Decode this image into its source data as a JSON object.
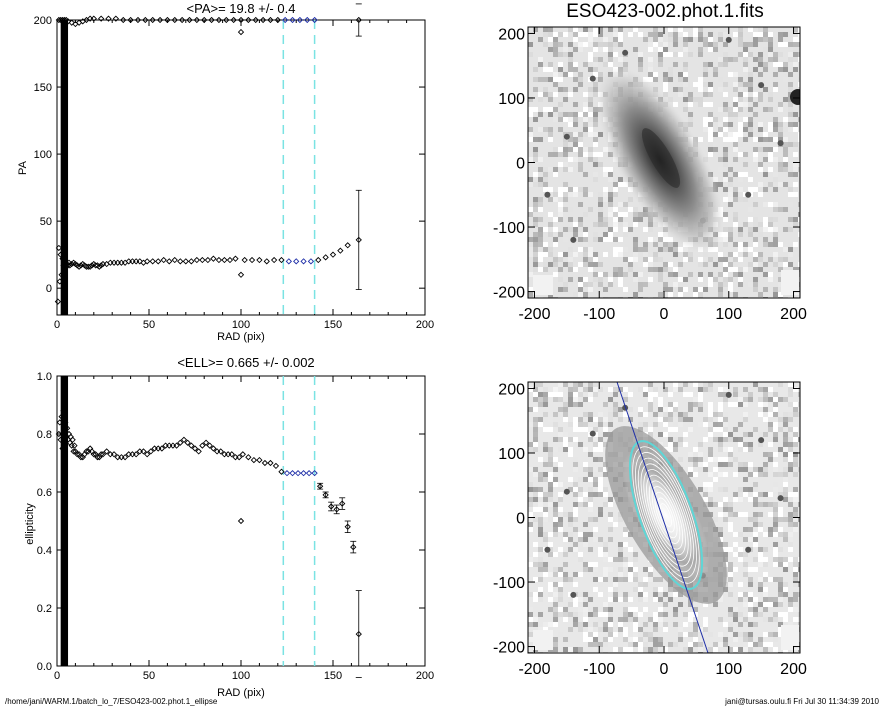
{
  "footer": {
    "path": "/home/jani/WARM.1/batch_lo_7/ESO423-002.phot.1_ellipse",
    "stamp": "jani@tursas.oulu.fi  Fri Jul 30 11:34:39 2010"
  },
  "colors": {
    "points": "#000000",
    "fit_points": "#1f2fa8",
    "fit_range": "#7ae3e3",
    "major_axis": "#1f2fa8",
    "outer_isophote": "#5fd6d6",
    "isophotes": "#ffffff"
  },
  "chart_data": [
    {
      "type": "scatter",
      "title": "<PA>=  19.8 +/-   0.4",
      "xlabel": "RAD (pix)",
      "ylabel": "PA",
      "xlim": [
        0,
        200
      ],
      "ylim": [
        -20,
        200
      ],
      "xticks": [
        0,
        50,
        100,
        150,
        200
      ],
      "yticks": [
        0,
        50,
        100,
        150,
        200
      ],
      "fit_range": [
        123,
        140
      ],
      "fit_value": 19.8,
      "series": [
        {
          "x": [
            0.5,
            1.0,
            1.5,
            2.0,
            2.5,
            3.0,
            3.5,
            4.0,
            4.5,
            5.0,
            5.5,
            6.0,
            6.5,
            7.0,
            8.0,
            9.0,
            10.0,
            11.0,
            12.0,
            13.0,
            14.0,
            15.0,
            16.0,
            17.0,
            18.0,
            19.0,
            20.0,
            21.0,
            22.0,
            23.0,
            24.0,
            25.0,
            27.0,
            29.0,
            31.0,
            33.0,
            35.0,
            37.0,
            39.0,
            41.0,
            43.0,
            45.0,
            47.0,
            49.0,
            52.0,
            55.0,
            58.0,
            61.0,
            64.0,
            67.0,
            70.0,
            73.0,
            76.0,
            79.0,
            82.0,
            85.0,
            88.0,
            91.0,
            94.0,
            97.0,
            102.0,
            106.0,
            110.0,
            114.0,
            118.0,
            122.0,
            126.0,
            130.0,
            134.0,
            138.0,
            142.0,
            146.0,
            150.0,
            154.0,
            158.0,
            164.0
          ],
          "y": [
            -10,
            30,
            5,
            25,
            10,
            22,
            17,
            14,
            20,
            16,
            18,
            17,
            19,
            17,
            18,
            19,
            18,
            17,
            16,
            17,
            18,
            17,
            16,
            16,
            16,
            17,
            18,
            17,
            17,
            16,
            17,
            18,
            18,
            19,
            19,
            19,
            19,
            19,
            20,
            20,
            20,
            20,
            19,
            20,
            20,
            20,
            21,
            20,
            21,
            20,
            20,
            20,
            21,
            21,
            21,
            22,
            21,
            21,
            21,
            22,
            21,
            21,
            21,
            20,
            21,
            21,
            20,
            20,
            20,
            20,
            21,
            23,
            25,
            28,
            32,
            36
          ],
          "err": [
            0,
            0,
            0,
            0,
            0,
            0,
            0,
            0,
            0,
            0,
            0,
            0,
            0,
            0,
            0,
            0,
            0,
            0,
            0,
            0,
            0,
            0,
            0,
            0,
            0,
            0,
            0,
            0,
            0,
            0,
            0,
            0,
            0,
            0,
            0,
            0,
            0,
            0,
            0,
            0,
            0,
            0,
            0,
            0,
            0,
            0,
            0,
            0,
            0,
            0,
            0,
            0,
            0,
            0,
            0,
            0,
            0,
            0,
            0,
            0,
            0,
            0,
            0,
            0,
            0,
            0,
            0,
            0,
            0,
            0,
            0,
            0,
            0,
            0,
            0,
            37
          ]
        },
        {
          "x": [
            1.0,
            2.0,
            3.0,
            4.0,
            5.0,
            6.0,
            8.0,
            10.0,
            12.0,
            14.0,
            16.0,
            18.0,
            20.0,
            24.0,
            28.0,
            32.0,
            36.0,
            40.0,
            44.0,
            48.0,
            52.0,
            56.0,
            60.0,
            64.0,
            68.0,
            72.0,
            76.0,
            80.0,
            84.0,
            88.0,
            92.0,
            96.0,
            100.0,
            104.0,
            108.0,
            112.0,
            116.0,
            120.0,
            124.0,
            128.0,
            132.0,
            136.0,
            140.0,
            164.0
          ],
          "y": [
            200,
            200,
            200,
            200,
            200,
            199,
            198,
            197,
            198,
            199,
            200,
            201,
            201,
            201,
            201,
            201,
            200,
            200,
            200,
            200,
            200,
            200,
            200,
            200,
            200,
            200,
            200,
            200,
            200,
            200,
            200,
            200,
            200,
            200,
            200,
            200,
            200,
            200,
            200,
            200,
            200,
            200,
            200,
            200
          ],
          "err": [
            0,
            0,
            0,
            0,
            0,
            0,
            0,
            0,
            0,
            0,
            0,
            0,
            0,
            0,
            0,
            0,
            0,
            0,
            0,
            0,
            0,
            0,
            0,
            0,
            0,
            0,
            0,
            0,
            0,
            0,
            0,
            0,
            0,
            0,
            0,
            0,
            0,
            0,
            0,
            0,
            0,
            0,
            0,
            12
          ]
        },
        {
          "x": [
            100.0,
            100.0
          ],
          "y": [
            10,
            191
          ],
          "err": [
            0,
            0
          ]
        }
      ]
    },
    {
      "type": "image",
      "title": "ESO423-002.phot.1.fits",
      "xlim": [
        -210,
        210
      ],
      "ylim": [
        -210,
        210
      ],
      "xticks": [
        -200,
        -100,
        0,
        100,
        200
      ],
      "yticks": [
        -200,
        -100,
        0,
        100,
        200
      ]
    },
    {
      "type": "scatter",
      "title": "<ELL>= 0.665 +/-  0.002",
      "xlabel": "RAD (pix)",
      "ylabel": "ellipticity",
      "xlim": [
        0,
        200
      ],
      "ylim": [
        0,
        1
      ],
      "xticks": [
        0,
        50,
        100,
        150,
        200
      ],
      "yticks": [
        0.0,
        0.2,
        0.4,
        0.6,
        0.8,
        1.0
      ],
      "fit_range": [
        123,
        140
      ],
      "fit_value": 0.665,
      "series": [
        {
          "x": [
            1.0,
            1.5,
            2.0,
            2.5,
            3.0,
            3.5,
            4.0,
            4.5,
            5.0,
            5.5,
            6.0,
            6.5,
            7.0,
            7.5,
            8.0,
            8.5,
            9.0,
            9.5,
            10.0,
            11.0,
            12.0,
            13.0,
            14.0,
            15.0,
            16.0,
            17.0,
            18.0,
            19.0,
            20.0,
            21.0,
            22.0,
            23.0,
            24.0,
            25.0,
            27.0,
            29.0,
            31.0,
            33.0,
            35.0,
            37.0,
            39.0,
            41.0,
            43.0,
            45.0,
            47.0,
            49.0,
            51.0,
            53.0,
            55.0,
            57.0,
            59.0,
            61.0,
            63.0,
            65.0,
            67.0,
            69.0,
            71.0,
            73.0,
            75.0,
            77.0,
            79.0,
            81.0,
            83.0,
            85.0,
            87.0,
            89.0,
            91.0,
            93.0,
            95.0,
            97.0,
            99.0,
            101.0,
            104.0,
            107.0,
            110.0,
            113.0,
            116.0,
            119.0,
            122.0,
            125.0,
            128.0,
            131.0,
            134.0,
            137.0,
            140.0,
            143.0,
            146.0,
            149.0,
            152.0,
            155.0,
            158.0,
            161.0,
            164.0
          ],
          "y": [
            0.8,
            0.84,
            0.78,
            0.86,
            0.75,
            0.88,
            0.77,
            0.84,
            0.79,
            0.82,
            0.78,
            0.8,
            0.77,
            0.79,
            0.76,
            0.78,
            0.74,
            0.76,
            0.74,
            0.73,
            0.73,
            0.72,
            0.72,
            0.73,
            0.74,
            0.74,
            0.75,
            0.74,
            0.73,
            0.73,
            0.72,
            0.72,
            0.73,
            0.73,
            0.74,
            0.73,
            0.73,
            0.72,
            0.72,
            0.72,
            0.73,
            0.73,
            0.73,
            0.74,
            0.74,
            0.73,
            0.74,
            0.75,
            0.75,
            0.75,
            0.76,
            0.76,
            0.76,
            0.76,
            0.77,
            0.78,
            0.77,
            0.76,
            0.75,
            0.74,
            0.76,
            0.77,
            0.76,
            0.75,
            0.74,
            0.74,
            0.73,
            0.73,
            0.73,
            0.72,
            0.72,
            0.73,
            0.72,
            0.71,
            0.71,
            0.7,
            0.7,
            0.69,
            0.67,
            0.665,
            0.665,
            0.665,
            0.665,
            0.665,
            0.665,
            0.62,
            0.59,
            0.55,
            0.54,
            0.56,
            0.48,
            0.41,
            0.11
          ],
          "err": [
            0,
            0,
            0,
            0,
            0,
            0,
            0,
            0,
            0,
            0,
            0,
            0,
            0,
            0,
            0,
            0,
            0,
            0,
            0,
            0,
            0,
            0,
            0,
            0,
            0,
            0,
            0,
            0,
            0,
            0,
            0,
            0,
            0,
            0,
            0,
            0,
            0,
            0,
            0,
            0,
            0,
            0,
            0,
            0,
            0,
            0,
            0,
            0,
            0,
            0,
            0,
            0,
            0,
            0,
            0,
            0,
            0,
            0,
            0,
            0,
            0,
            0,
            0,
            0,
            0,
            0,
            0,
            0,
            0,
            0,
            0,
            0,
            0,
            0,
            0,
            0,
            0,
            0,
            0,
            0,
            0,
            0,
            0,
            0,
            0,
            0.01,
            0.01,
            0.015,
            0.015,
            0.02,
            0.02,
            0.02,
            0.15
          ]
        },
        {
          "x": [
            100.0
          ],
          "y": [
            0.5
          ],
          "err": [
            0
          ]
        }
      ]
    },
    {
      "type": "image",
      "title": "",
      "xlim": [
        -210,
        210
      ],
      "ylim": [
        -210,
        210
      ],
      "xticks": [
        -200,
        -100,
        0,
        100,
        200
      ],
      "yticks": [
        -200,
        -100,
        0,
        100,
        200
      ],
      "isophote_pa": 19.8,
      "isophote_ell": 0.665
    }
  ]
}
